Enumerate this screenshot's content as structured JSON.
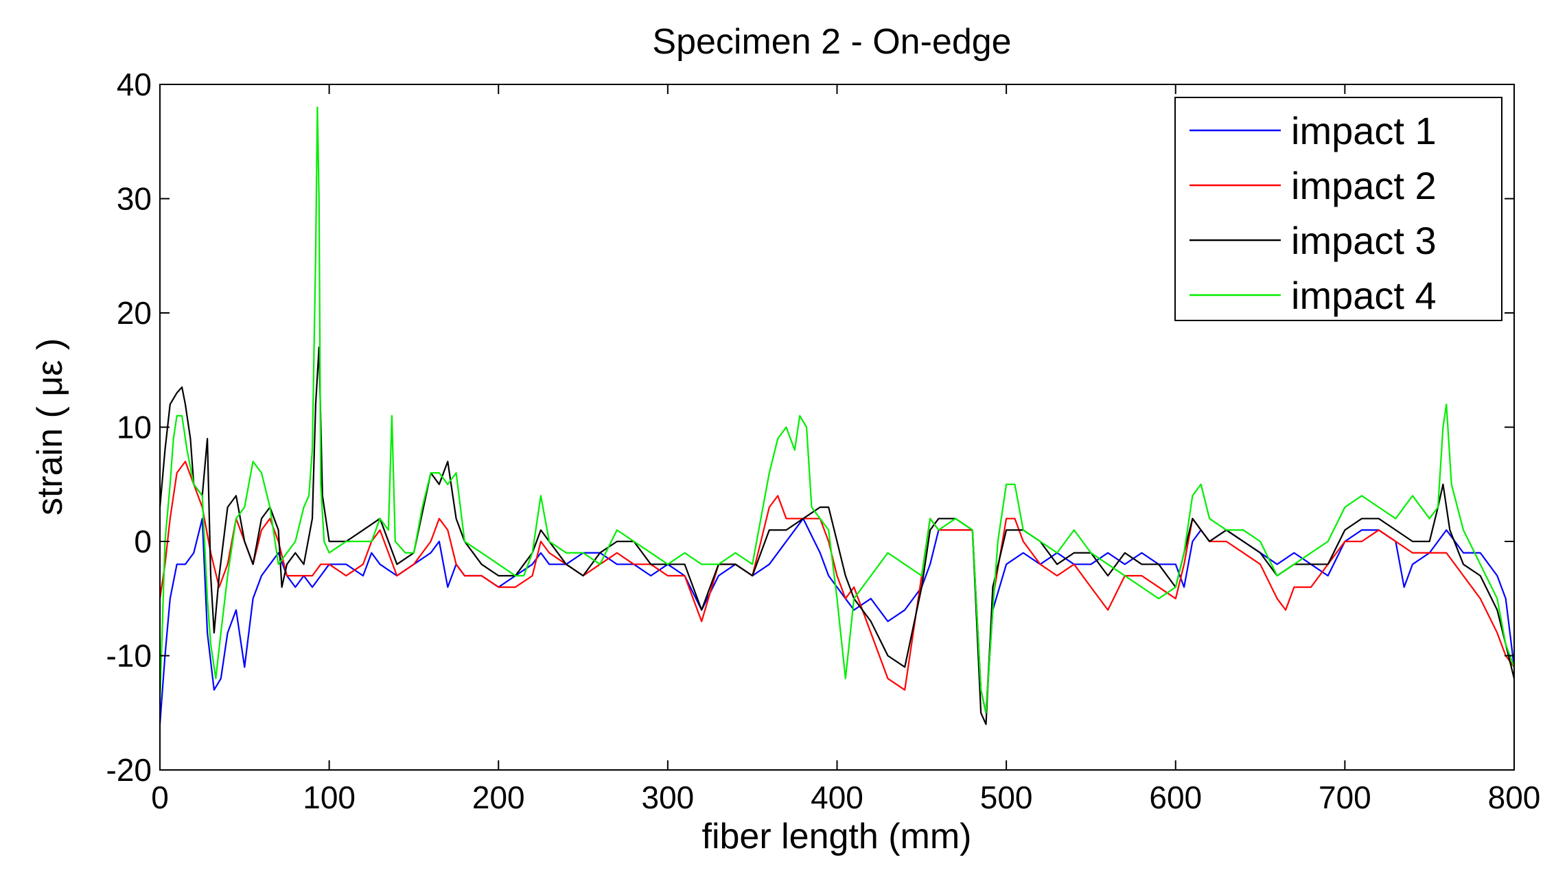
{
  "chart_data": {
    "type": "line",
    "title": "Specimen 2 - On-edge",
    "xlabel": "fiber length (mm)",
    "ylabel": "strain ( με )",
    "xlim": [
      0,
      800
    ],
    "ylim": [
      -20,
      40
    ],
    "xticks": [
      0,
      100,
      200,
      300,
      400,
      500,
      600,
      700,
      800
    ],
    "yticks": [
      -20,
      -10,
      0,
      10,
      20,
      30,
      40
    ],
    "grid": false,
    "legend_position": "top-right",
    "series": [
      {
        "name": "impact 1",
        "color": "#0000ff",
        "x": [
          0,
          3,
          6,
          10,
          15,
          20,
          25,
          28,
          32,
          36,
          40,
          45,
          50,
          55,
          60,
          65,
          70,
          75,
          80,
          85,
          90,
          95,
          100,
          110,
          120,
          125,
          130,
          140,
          150,
          160,
          165,
          170,
          175,
          180,
          190,
          200,
          210,
          220,
          225,
          230,
          240,
          250,
          260,
          270,
          280,
          290,
          300,
          310,
          320,
          330,
          340,
          350,
          360,
          370,
          380,
          390,
          395,
          400,
          405,
          410,
          420,
          430,
          440,
          450,
          455,
          460,
          470,
          480,
          485,
          488,
          492,
          500,
          510,
          520,
          530,
          540,
          550,
          560,
          570,
          580,
          590,
          600,
          605,
          610,
          615,
          620,
          630,
          640,
          650,
          660,
          670,
          680,
          690,
          700,
          710,
          720,
          730,
          735,
          740,
          750,
          760,
          765,
          770,
          780,
          790,
          795,
          800
        ],
        "y": [
          -16,
          -10,
          -5,
          -2,
          -2,
          -1,
          2,
          -8,
          -13,
          -12,
          -8,
          -6,
          -11,
          -5,
          -3,
          -2,
          -1,
          -3,
          -4,
          -3,
          -4,
          -3,
          -2,
          -2,
          -3,
          -1,
          -2,
          -3,
          -2,
          -1,
          0,
          -4,
          -2,
          -3,
          -3,
          -4,
          -3,
          -2,
          -1,
          -2,
          -2,
          -1,
          -1,
          -2,
          -2,
          -3,
          -2,
          -3,
          -6,
          -3,
          -2,
          -3,
          -2,
          0,
          2,
          -1,
          -3,
          -4,
          -5,
          -6,
          -5,
          -7,
          -6,
          -4,
          -2,
          1,
          1,
          1,
          -13,
          -15,
          -6,
          -2,
          -1,
          -2,
          -1,
          -2,
          -2,
          -1,
          -2,
          -1,
          -2,
          -2,
          -4,
          0,
          1,
          0,
          1,
          0,
          -1,
          -2,
          -1,
          -2,
          -3,
          0,
          1,
          1,
          0,
          -4,
          -2,
          -1,
          1,
          0,
          -1,
          -1,
          -3,
          -5,
          -11
        ]
      },
      {
        "name": "impact 2",
        "color": "#ff0000",
        "x": [
          0,
          3,
          6,
          10,
          15,
          20,
          25,
          30,
          35,
          40,
          45,
          50,
          55,
          60,
          65,
          70,
          75,
          80,
          90,
          95,
          100,
          110,
          120,
          125,
          130,
          140,
          150,
          160,
          165,
          170,
          175,
          180,
          190,
          200,
          210,
          220,
          225,
          230,
          240,
          250,
          260,
          270,
          280,
          290,
          300,
          310,
          320,
          330,
          340,
          350,
          360,
          365,
          370,
          380,
          390,
          395,
          400,
          405,
          410,
          420,
          430,
          440,
          450,
          455,
          460,
          470,
          480,
          485,
          488,
          492,
          500,
          505,
          510,
          520,
          530,
          540,
          550,
          560,
          570,
          580,
          590,
          600,
          605,
          610,
          615,
          620,
          630,
          640,
          650,
          660,
          665,
          670,
          680,
          690,
          700,
          710,
          720,
          730,
          740,
          750,
          760,
          770,
          780,
          790,
          795,
          800
        ],
        "y": [
          -5,
          -2,
          2,
          6,
          7,
          5,
          3,
          -1,
          -4,
          -2,
          2,
          0,
          -2,
          1,
          2,
          0,
          -3,
          -3,
          -3,
          -2,
          -2,
          -3,
          -2,
          0,
          1,
          -3,
          -2,
          0,
          2,
          1,
          -2,
          -3,
          -3,
          -4,
          -4,
          -3,
          0,
          -1,
          -2,
          -3,
          -2,
          -1,
          -2,
          -2,
          -3,
          -3,
          -7,
          -2,
          -2,
          -3,
          3,
          4,
          2,
          2,
          2,
          0,
          -3,
          -5,
          -4,
          -8,
          -12,
          -13,
          -3,
          2,
          1,
          1,
          1,
          -13,
          -15,
          -5,
          2,
          2,
          0,
          -2,
          -3,
          -2,
          -4,
          -6,
          -3,
          -3,
          -4,
          -5,
          -2,
          2,
          1,
          0,
          0,
          -1,
          -2,
          -5,
          -6,
          -4,
          -4,
          -2,
          0,
          0,
          1,
          0,
          -1,
          -1,
          -1,
          -3,
          -5,
          -8,
          -10,
          -11
        ]
      },
      {
        "name": "impact 3",
        "color": "#000000",
        "x": [
          0,
          3,
          6,
          10,
          13,
          15,
          18,
          20,
          25,
          28,
          30,
          32,
          35,
          40,
          45,
          50,
          55,
          60,
          65,
          70,
          72,
          75,
          80,
          85,
          90,
          92,
          94,
          96,
          100,
          110,
          120,
          130,
          140,
          150,
          160,
          165,
          170,
          175,
          180,
          190,
          200,
          210,
          220,
          225,
          230,
          240,
          250,
          260,
          270,
          280,
          290,
          300,
          310,
          320,
          330,
          340,
          350,
          360,
          370,
          380,
          390,
          395,
          400,
          405,
          410,
          420,
          430,
          440,
          450,
          455,
          460,
          470,
          480,
          485,
          488,
          492,
          500,
          510,
          520,
          530,
          540,
          550,
          560,
          570,
          580,
          590,
          600,
          605,
          610,
          615,
          620,
          630,
          640,
          650,
          660,
          670,
          680,
          690,
          700,
          710,
          720,
          730,
          740,
          750,
          755,
          758,
          762,
          770,
          780,
          790,
          795,
          800
        ],
        "y": [
          3,
          8,
          12,
          13,
          13.5,
          12,
          9,
          5,
          4,
          9,
          -3,
          -8,
          -3,
          3,
          4,
          0,
          -2,
          2,
          3,
          1,
          -4,
          -2,
          -1,
          -2,
          2,
          12,
          17,
          4,
          0,
          0,
          1,
          2,
          -2,
          -1,
          6,
          5,
          7,
          2,
          0,
          -2,
          -3,
          -3,
          -1,
          1,
          0,
          -2,
          -3,
          -1,
          0,
          0,
          -2,
          -2,
          -2,
          -6,
          -2,
          -2,
          -3,
          1,
          1,
          2,
          3,
          3,
          0,
          -3,
          -5,
          -7,
          -10,
          -11,
          -4,
          1,
          2,
          2,
          1,
          -15,
          -16,
          -4,
          1,
          1,
          0,
          -2,
          -1,
          -1,
          -3,
          -1,
          -2,
          -2,
          -4,
          -1,
          2,
          1,
          0,
          1,
          0,
          -1,
          -3,
          -2,
          -2,
          -2,
          1,
          2,
          2,
          1,
          0,
          0,
          3,
          5,
          1,
          -2,
          -3,
          -6,
          -9,
          -12
        ]
      },
      {
        "name": "impact 4",
        "color": "#00ee00",
        "x": [
          0,
          3,
          6,
          8,
          10,
          13,
          16,
          20,
          25,
          28,
          30,
          33,
          36,
          40,
          45,
          50,
          55,
          60,
          65,
          70,
          75,
          80,
          85,
          88,
          90,
          92,
          93,
          94,
          95,
          97,
          100,
          110,
          120,
          125,
          130,
          135,
          137,
          139,
          145,
          150,
          155,
          160,
          165,
          170,
          175,
          180,
          190,
          200,
          210,
          215,
          220,
          225,
          230,
          240,
          250,
          260,
          270,
          280,
          290,
          300,
          310,
          320,
          330,
          340,
          350,
          360,
          365,
          370,
          375,
          378,
          382,
          385,
          390,
          395,
          400,
          405,
          410,
          420,
          430,
          440,
          450,
          455,
          460,
          470,
          480,
          485,
          488,
          492,
          495,
          500,
          505,
          510,
          520,
          530,
          540,
          550,
          560,
          570,
          580,
          590,
          600,
          605,
          610,
          615,
          620,
          630,
          640,
          650,
          660,
          670,
          680,
          690,
          700,
          710,
          720,
          730,
          740,
          750,
          755,
          758,
          760,
          763,
          770,
          780,
          790,
          795,
          800
        ],
        "y": [
          -14,
          0,
          5,
          9,
          11,
          11,
          8,
          5,
          4,
          -5,
          -9,
          -12,
          -8,
          -3,
          2,
          3,
          7,
          6,
          3,
          -2,
          -1,
          0,
          3,
          4,
          8,
          25,
          38,
          30,
          5,
          0,
          -1,
          0,
          0,
          0,
          2,
          1,
          11,
          0,
          -1,
          -1,
          3,
          6,
          6,
          5,
          6,
          0,
          -1,
          -2,
          -3,
          -3,
          -1,
          4,
          0,
          -1,
          -1,
          -2,
          1,
          0,
          -1,
          -2,
          -1,
          -2,
          -2,
          -1,
          -2,
          6,
          9,
          10,
          8,
          11,
          10,
          3,
          2,
          1,
          -5,
          -12,
          -5,
          -3,
          -1,
          -2,
          -3,
          2,
          1,
          2,
          1,
          -13,
          -15,
          -6,
          0,
          5,
          5,
          1,
          0,
          -1,
          1,
          -1,
          -2,
          -3,
          -4,
          -5,
          -4,
          -1,
          4,
          5,
          2,
          1,
          1,
          0,
          -3,
          -2,
          -1,
          0,
          3,
          4,
          3,
          2,
          4,
          2,
          3,
          10,
          12,
          5,
          1,
          -2,
          -5,
          -9,
          -11
        ]
      }
    ]
  }
}
